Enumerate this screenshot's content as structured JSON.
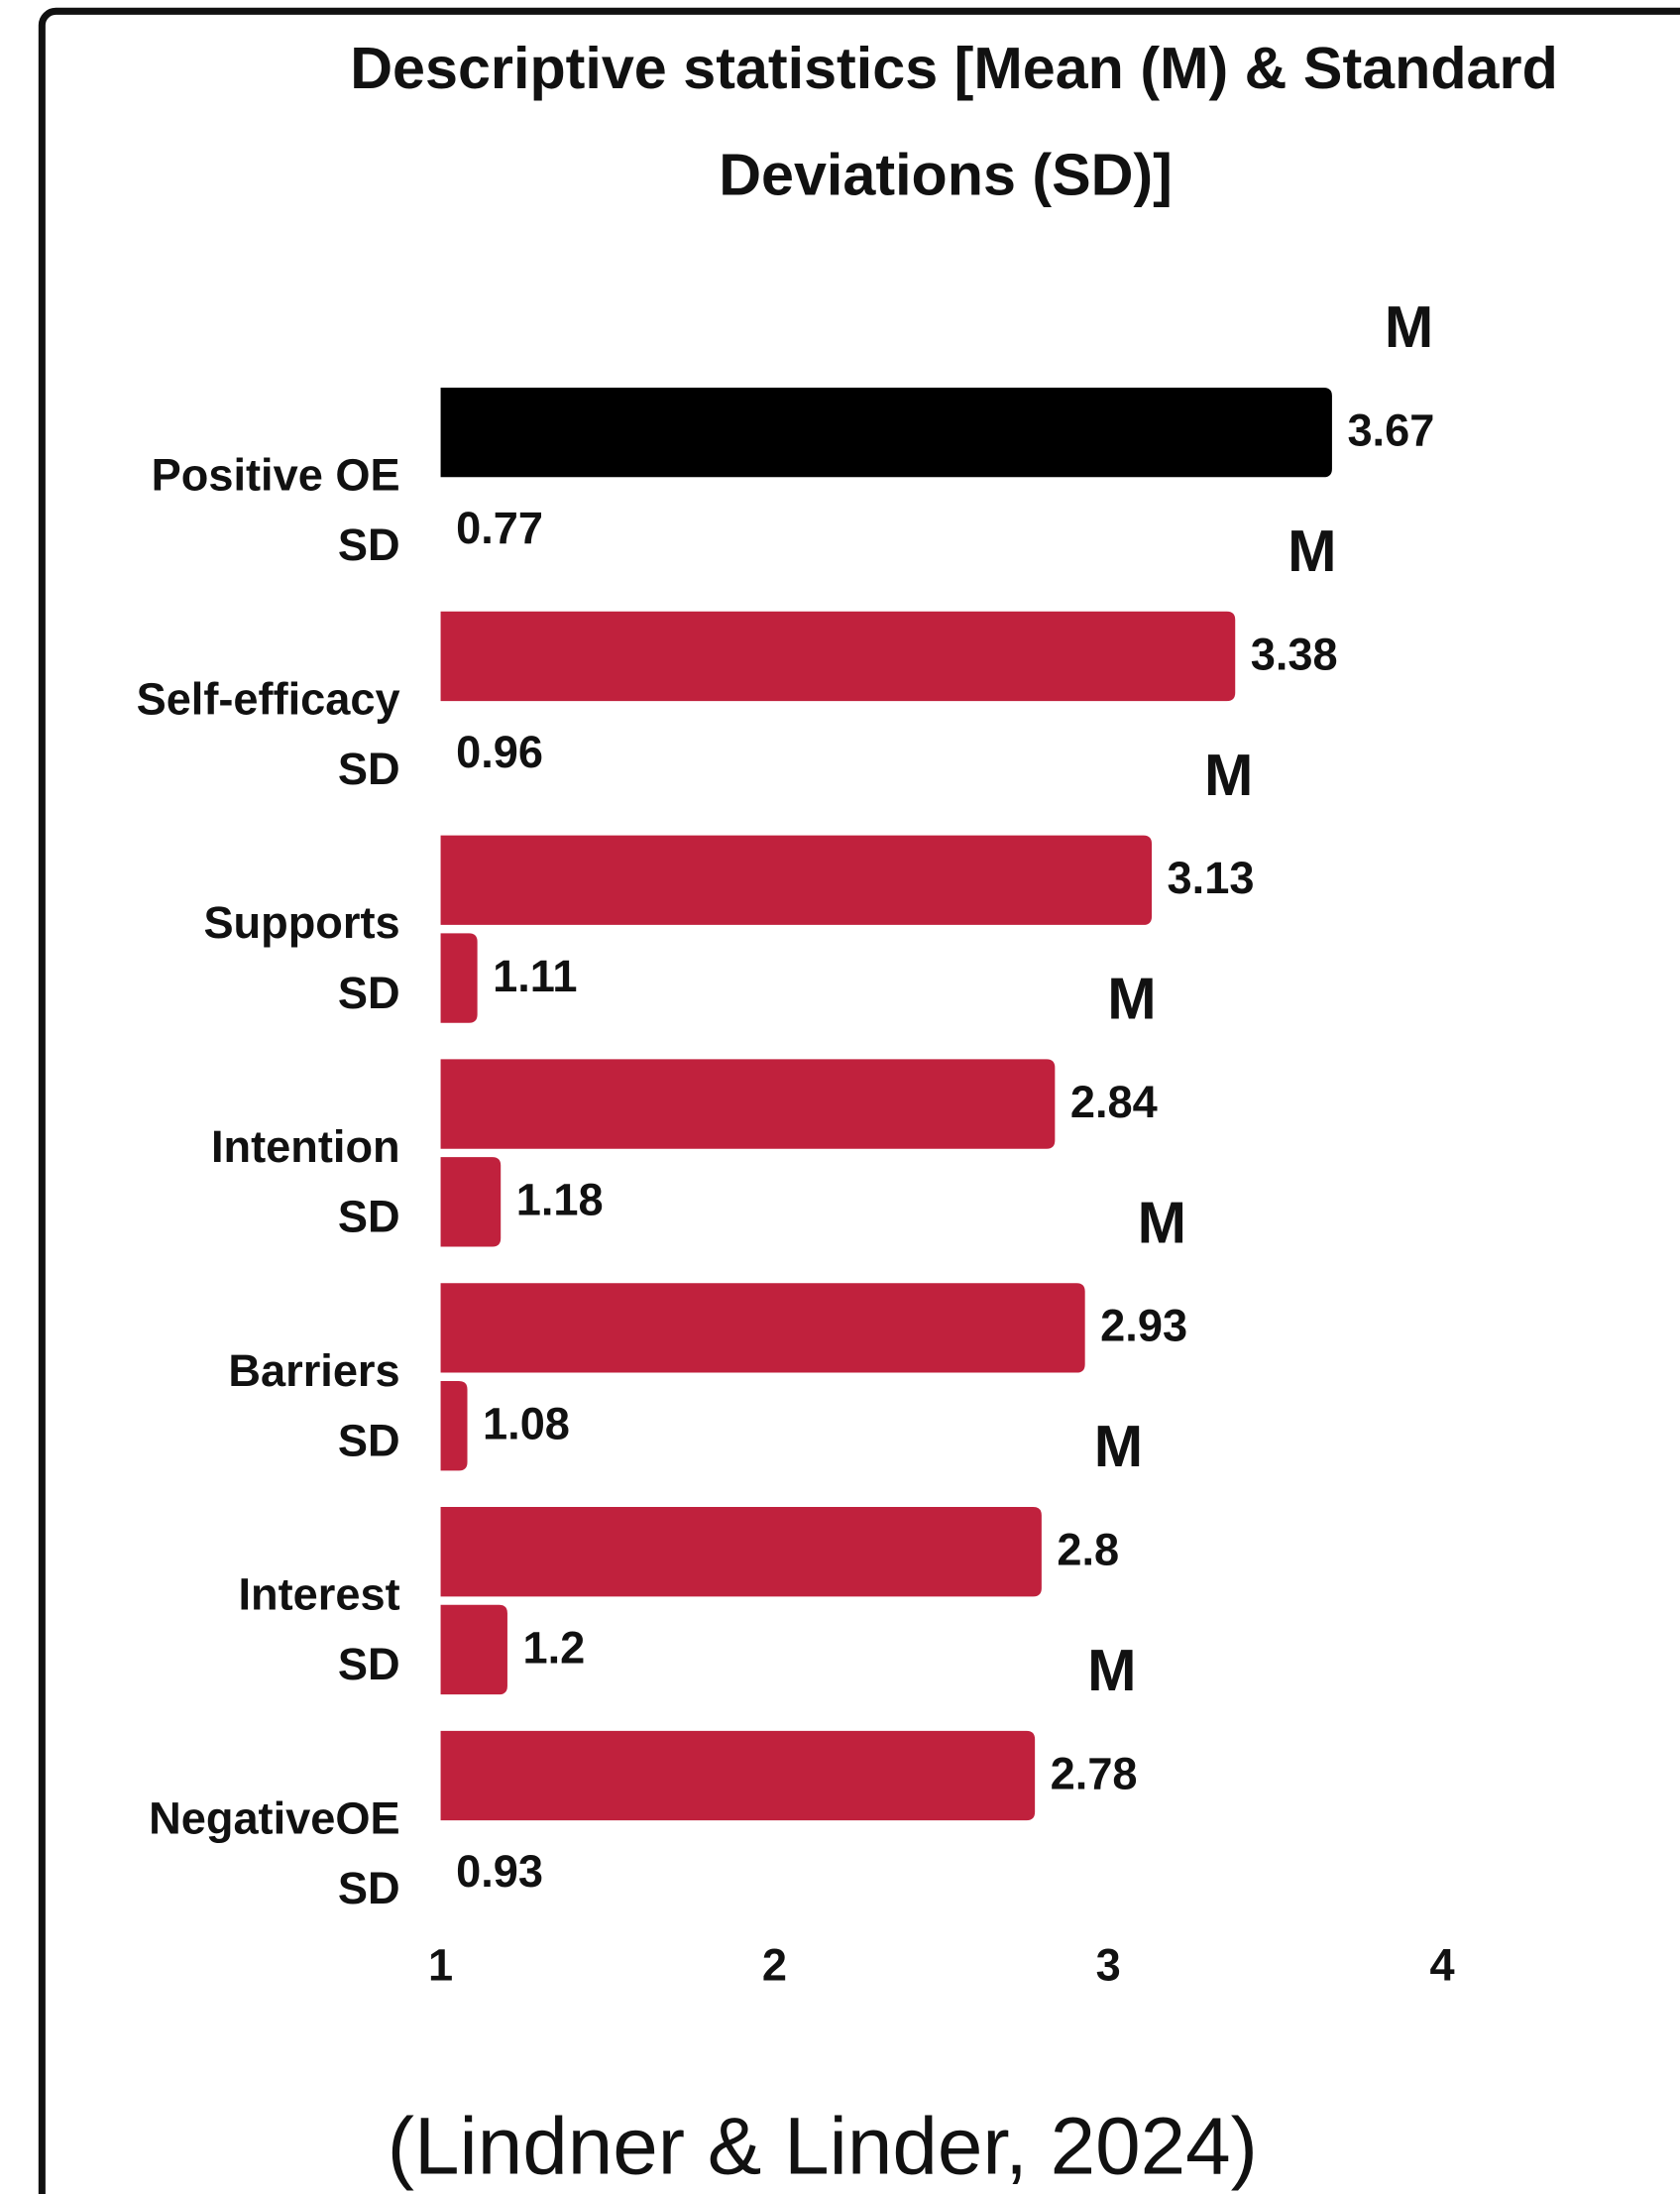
{
  "chart_data": {
    "type": "bar",
    "title_lines": [
      "Descriptive statistics  [Mean (M) & Standard",
      "Deviations (SD)]"
    ],
    "categories": [
      "Positive OE",
      "Self-efficacy",
      "Supports",
      "Intention",
      "Barriers",
      "Interest",
      "NegativeOE"
    ],
    "series": [
      {
        "name": "M",
        "color": "#c0213d",
        "colors": [
          "#000000",
          "#c0213d",
          "#c0213d",
          "#c0213d",
          "#c0213d",
          "#c0213d",
          "#c0213d"
        ],
        "values": [
          3.67,
          3.38,
          3.13,
          2.84,
          2.93,
          2.8,
          2.78
        ]
      },
      {
        "name": "SD",
        "color": "#c0213d",
        "values": [
          0.77,
          0.96,
          1.11,
          1.18,
          1.08,
          1.2,
          0.93
        ]
      }
    ],
    "xlim": [
      1,
      4
    ],
    "xticks": [
      1,
      2,
      3,
      4
    ],
    "grid": false,
    "caption": "(Lindner & Linder, 2024)"
  }
}
